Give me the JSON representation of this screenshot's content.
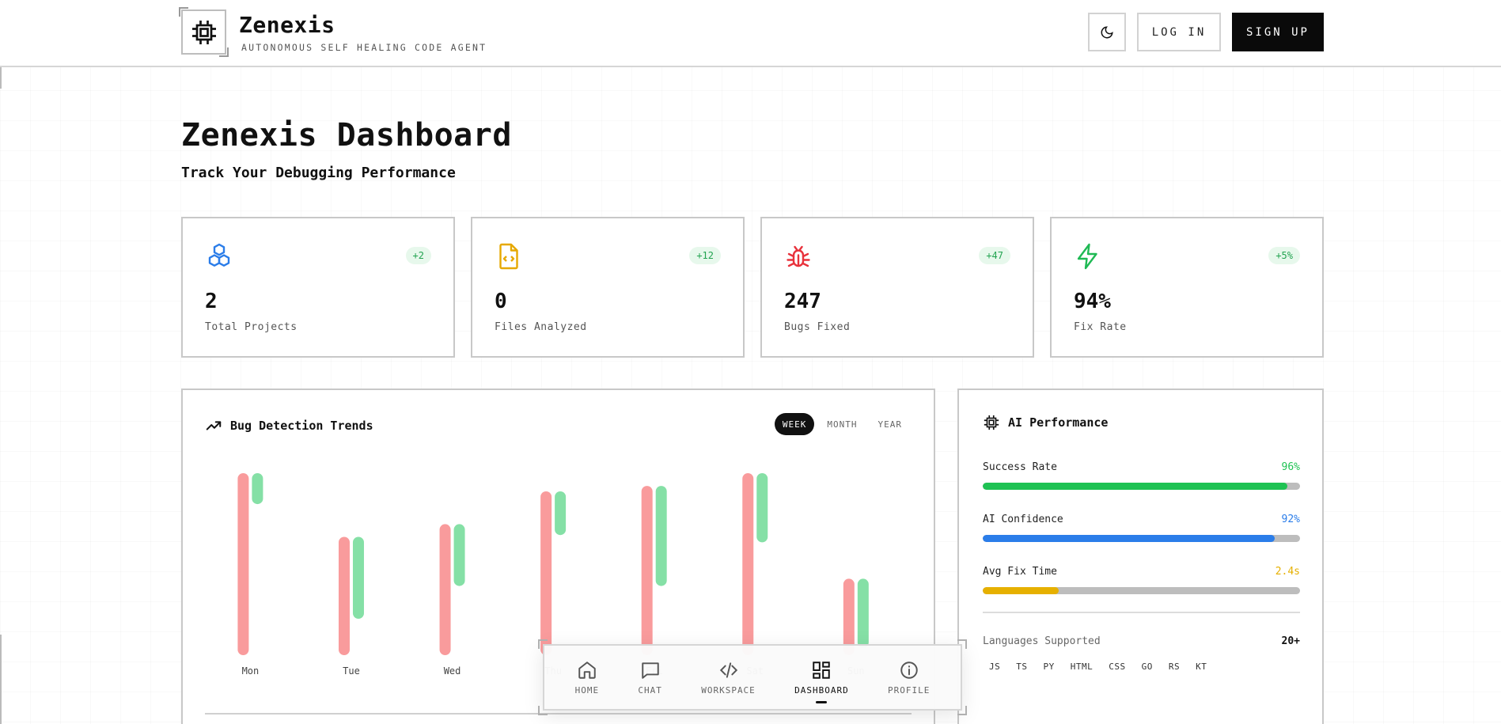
{
  "header": {
    "brand_name": "Zenexis",
    "brand_tagline": "AUTONOMOUS SELF HEALING CODE AGENT",
    "login_label": "LOG IN",
    "signup_label": "SIGN UP",
    "theme_icon": "moon-icon"
  },
  "page": {
    "title": "Zenexis Dashboard",
    "subtitle": "Track Your Debugging Performance"
  },
  "stats": [
    {
      "icon": "cubes-icon",
      "color": "#2b7de9",
      "badge": "+2",
      "value": "2",
      "label": "Total Projects"
    },
    {
      "icon": "file-code-icon",
      "color": "#e6a800",
      "badge": "+12",
      "value": "0",
      "label": "Files Analyzed"
    },
    {
      "icon": "bug-icon",
      "color": "#e8323c",
      "badge": "+47",
      "value": "247",
      "label": "Bugs Fixed"
    },
    {
      "icon": "bolt-icon",
      "color": "#1fb954",
      "badge": "+5%",
      "value": "94%",
      "label": "Fix Rate"
    }
  ],
  "chart": {
    "title": "Bug Detection Trends",
    "tabs": [
      "WEEK",
      "MONTH",
      "YEAR"
    ],
    "active_tab": "WEEK"
  },
  "chart_data": {
    "type": "bar",
    "categories": [
      "Mon",
      "Tue",
      "Wed",
      "Thu",
      "Fri",
      "Sat",
      "Sun"
    ],
    "series": [
      {
        "color": "#f99b9c",
        "values": [
          100,
          65,
          72,
          90,
          93,
          100,
          42
        ]
      },
      {
        "color": "#85e0a6",
        "values": [
          17,
          45,
          34,
          24,
          55,
          38,
          38
        ]
      }
    ],
    "ylim": [
      0,
      100
    ]
  },
  "ai": {
    "title": "AI Performance",
    "metrics": [
      {
        "label": "Success Rate",
        "value": "96%",
        "fraction": 0.96,
        "color": "#1fc253"
      },
      {
        "label": "AI Confidence",
        "value": "92%",
        "fraction": 0.92,
        "color": "#2b7de9"
      },
      {
        "label": "Avg Fix Time",
        "value": "2.4s",
        "fraction": 0.24,
        "color": "#e6b000"
      }
    ],
    "languages_label": "Languages Supported",
    "languages_count": "20+",
    "languages": [
      "JS",
      "TS",
      "PY",
      "HTML",
      "CSS",
      "GO",
      "RS",
      "KT"
    ]
  },
  "nav": {
    "items": [
      {
        "label": "HOME",
        "icon": "home-icon"
      },
      {
        "label": "CHAT",
        "icon": "chat-icon"
      },
      {
        "label": "WORKSPACE",
        "icon": "code-icon"
      },
      {
        "label": "DASHBOARD",
        "icon": "grid-icon"
      },
      {
        "label": "PROFILE",
        "icon": "info-icon"
      }
    ],
    "active": "DASHBOARD"
  }
}
